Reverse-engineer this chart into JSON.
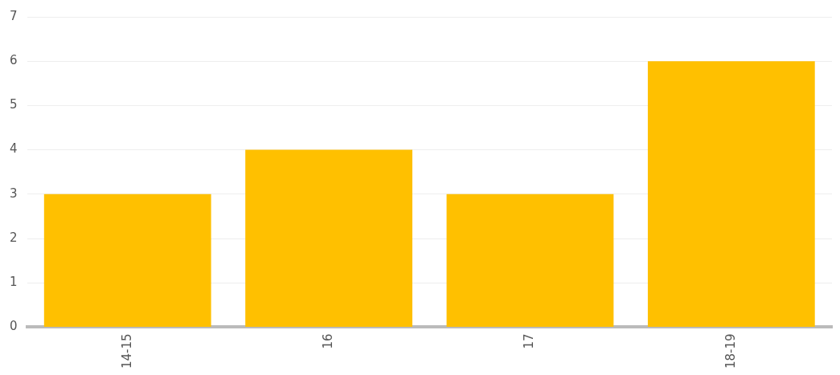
{
  "chart_data": {
    "type": "bar",
    "categories": [
      "14-15",
      "16",
      "17",
      "18-19"
    ],
    "values": [
      3,
      4,
      3,
      6
    ],
    "color": "#ffc000",
    "ylim": [
      0,
      7
    ],
    "yticks": [
      0,
      1,
      2,
      3,
      4,
      5,
      6,
      7
    ],
    "grid": "y"
  }
}
